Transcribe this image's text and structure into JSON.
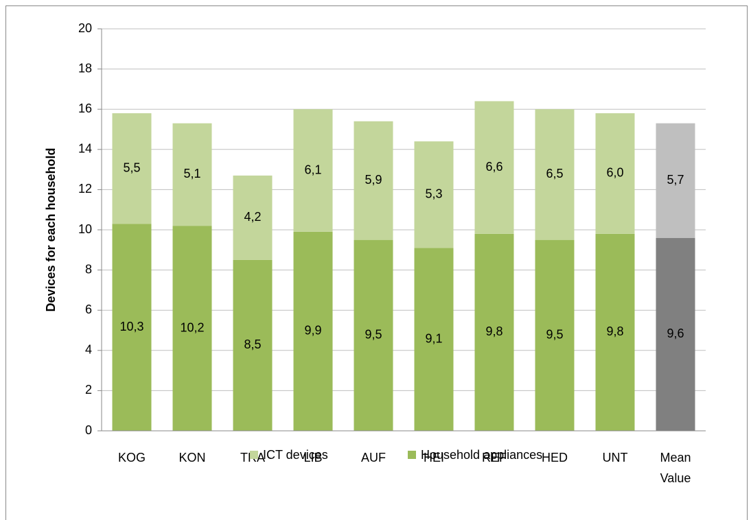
{
  "chart_data": {
    "type": "stacked_bar",
    "y_label": "Devices for each household",
    "categories": [
      "KOG",
      "KON",
      "TRA",
      "LIB",
      "AUF",
      "HEI",
      "REF",
      "HED",
      "UNT",
      "Mean Value"
    ],
    "series": [
      {
        "name": "Household appliances",
        "color": "#9bbb59",
        "colors": [
          "#9bbb59",
          "#9bbb59",
          "#9bbb59",
          "#9bbb59",
          "#9bbb59",
          "#9bbb59",
          "#9bbb59",
          "#9bbb59",
          "#9bbb59",
          "#808080"
        ],
        "values": [
          10.3,
          10.2,
          8.5,
          9.9,
          9.5,
          9.1,
          9.8,
          9.5,
          9.8,
          9.6
        ],
        "value_labels": [
          "10,3",
          "10,2",
          "8,5",
          "9,9",
          "9,5",
          "9,1",
          "9,8",
          "9,5",
          "9,8",
          "9,6"
        ]
      },
      {
        "name": "ICT devices",
        "color": "#c3d69b",
        "colors": [
          "#c3d69b",
          "#c3d69b",
          "#c3d69b",
          "#c3d69b",
          "#c3d69b",
          "#c3d69b",
          "#c3d69b",
          "#c3d69b",
          "#c3d69b",
          "#bfbfbf"
        ],
        "values": [
          5.5,
          5.1,
          4.2,
          6.1,
          5.9,
          5.3,
          6.6,
          6.5,
          6.0,
          5.7
        ],
        "value_labels": [
          "5,5",
          "5,1",
          "4,2",
          "6,1",
          "5,9",
          "5,3",
          "6,6",
          "6,5",
          "6,0",
          "5,7"
        ]
      }
    ],
    "legend_order": [
      1,
      0
    ],
    "ylim": [
      0,
      20
    ],
    "yticks": [
      0,
      2,
      4,
      6,
      8,
      10,
      12,
      14,
      16,
      18,
      20
    ],
    "grid": true
  }
}
